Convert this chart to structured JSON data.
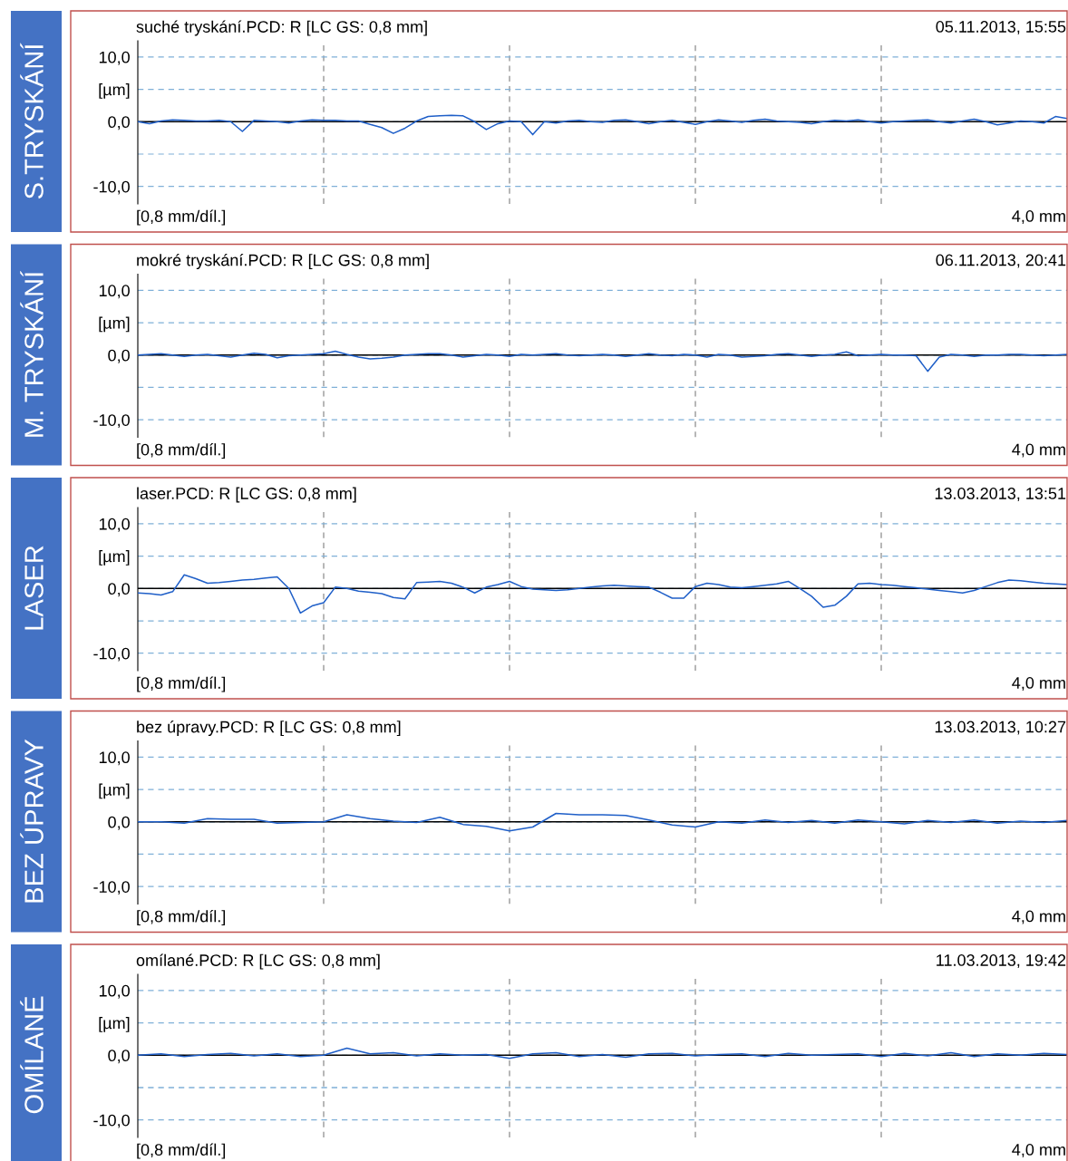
{
  "chart_data": [
    {
      "type": "line",
      "title": "suché tryskání.PCD: R [LC GS: 0,8 mm]",
      "subtitle": "05.11.2013, 15:55",
      "ylabel": "S.TRYSKÁNÍ",
      "annotations": [
        "[0,8 mm/díl.]",
        "4,0 mm"
      ],
      "categories": [
        null,
        null,
        null,
        null,
        null,
        null,
        null,
        null,
        null,
        null,
        null,
        null,
        null,
        null,
        null,
        null,
        null,
        null,
        null,
        null,
        null,
        null,
        null,
        null,
        null,
        null,
        null,
        null,
        null,
        null,
        null,
        null,
        null,
        null,
        null,
        null,
        null,
        null,
        null,
        null,
        null,
        null,
        null,
        null,
        null,
        null,
        null,
        null,
        null,
        null,
        null,
        null,
        null,
        null,
        null,
        null,
        null,
        null,
        null,
        null,
        null,
        null,
        null,
        null,
        null,
        null,
        null,
        null,
        null,
        null,
        null,
        null,
        null,
        null,
        null,
        null,
        null,
        null,
        null,
        null,
        null
      ],
      "ylim": [
        -12.7,
        12.5
      ],
      "yticks": [
        {
          "value": 10,
          "label": "10,0"
        },
        {
          "value": 5,
          "label": "[µm]"
        },
        {
          "value": 0,
          "label": "0,0"
        },
        {
          "value": -5,
          "label": null
        },
        {
          "value": -10,
          "label": "-10,0"
        }
      ],
      "grid": true,
      "tick_labels": "y",
      "ref_lines": [
        {
          "axis": "y",
          "value": 0,
          "color": "#000000"
        }
      ],
      "series": [
        {
          "color": "#1f5fc8",
          "values": [
            0.0,
            -0.3,
            0.1,
            0.3,
            0.2,
            0.1,
            0.1,
            0.2,
            0.0,
            -1.5,
            0.2,
            0.1,
            0.0,
            -0.2,
            0.1,
            0.3,
            0.2,
            0.2,
            0.1,
            0.1,
            -0.4,
            -0.9,
            -1.8,
            -1.0,
            0.1,
            0.8,
            0.9,
            1.0,
            0.9,
            0.0,
            -1.2,
            -0.3,
            0.1,
            0.0,
            -2.0,
            0.0,
            -0.2,
            0.1,
            0.2,
            0.0,
            -0.1,
            0.2,
            0.3,
            0.0,
            -0.3,
            0.0,
            0.2,
            -0.1,
            -0.4,
            0.0,
            0.3,
            0.1,
            -0.1,
            0.2,
            0.4,
            0.1,
            0.0,
            -0.1,
            -0.3,
            0.0,
            0.2,
            0.1,
            0.3,
            0.0,
            -0.2,
            0.0,
            0.1,
            0.2,
            0.3,
            0.0,
            -0.2,
            0.1,
            0.4,
            0.0,
            -0.5,
            -0.2,
            0.1,
            0.0,
            -0.2,
            0.8,
            0.5
          ]
        }
      ]
    },
    {
      "type": "line",
      "title": "mokré tryskání.PCD: R [LC GS: 0,8 mm]",
      "subtitle": "06.11.2013, 20:41",
      "ylabel": "M. TRYSKÁNÍ",
      "annotations": [
        "[0,8 mm/díl.]",
        "4,0 mm"
      ],
      "categories": [
        null,
        null,
        null,
        null,
        null,
        null,
        null,
        null,
        null,
        null,
        null,
        null,
        null,
        null,
        null,
        null,
        null,
        null,
        null,
        null,
        null,
        null,
        null,
        null,
        null,
        null,
        null,
        null,
        null,
        null,
        null,
        null,
        null,
        null,
        null,
        null,
        null,
        null,
        null,
        null,
        null,
        null,
        null,
        null,
        null,
        null,
        null,
        null,
        null,
        null,
        null,
        null,
        null,
        null,
        null,
        null,
        null,
        null,
        null,
        null,
        null,
        null,
        null,
        null,
        null,
        null,
        null,
        null,
        null,
        null,
        null,
        null,
        null,
        null,
        null,
        null,
        null,
        null,
        null,
        null,
        null
      ],
      "ylim": [
        -12.7,
        12.5
      ],
      "yticks": [
        {
          "value": 10,
          "label": "10,0"
        },
        {
          "value": 5,
          "label": "[µm]"
        },
        {
          "value": 0,
          "label": "0,0"
        },
        {
          "value": -5,
          "label": null
        },
        {
          "value": -10,
          "label": "-10,0"
        }
      ],
      "grid": true,
      "tick_labels": "y",
      "ref_lines": [
        {
          "axis": "y",
          "value": 0,
          "color": "#000000"
        }
      ],
      "series": [
        {
          "color": "#1f5fc8",
          "values": [
            0.0,
            0.1,
            0.2,
            0.0,
            -0.2,
            0.0,
            0.1,
            -0.1,
            -0.3,
            0.0,
            0.3,
            0.1,
            -0.4,
            -0.1,
            0.0,
            0.1,
            0.2,
            0.6,
            0.1,
            -0.3,
            -0.6,
            -0.5,
            -0.3,
            0.0,
            0.1,
            0.2,
            0.2,
            0.0,
            -0.3,
            -0.1,
            0.1,
            0.0,
            -0.2,
            0.1,
            0.0,
            0.1,
            0.2,
            0.0,
            -0.1,
            0.0,
            0.1,
            0.0,
            -0.2,
            0.0,
            0.2,
            0.0,
            -0.1,
            0.1,
            0.0,
            -0.3,
            0.1,
            0.0,
            -0.3,
            -0.2,
            -0.1,
            0.1,
            0.2,
            0.0,
            -0.2,
            0.0,
            0.1,
            0.5,
            -0.1,
            0.0,
            0.1,
            0.0,
            0.0,
            -0.1,
            -2.5,
            -0.3,
            0.1,
            0.0,
            -0.2,
            0.0,
            0.0,
            0.1,
            0.1,
            0.0,
            -0.1,
            0.0,
            0.1
          ]
        }
      ]
    },
    {
      "type": "line",
      "title": "laser.PCD: R [LC GS: 0,8 mm]",
      "subtitle": "13.03.2013, 13:51",
      "ylabel": "LASER",
      "annotations": [
        "[0,8 mm/díl.]",
        "4,0 mm"
      ],
      "categories": [
        null,
        null,
        null,
        null,
        null,
        null,
        null,
        null,
        null,
        null,
        null,
        null,
        null,
        null,
        null,
        null,
        null,
        null,
        null,
        null,
        null,
        null,
        null,
        null,
        null,
        null,
        null,
        null,
        null,
        null,
        null,
        null,
        null,
        null,
        null,
        null,
        null,
        null,
        null,
        null,
        null,
        null,
        null,
        null,
        null,
        null,
        null,
        null,
        null,
        null,
        null,
        null,
        null,
        null,
        null,
        null,
        null,
        null,
        null,
        null,
        null,
        null,
        null,
        null,
        null,
        null,
        null,
        null,
        null,
        null,
        null,
        null,
        null,
        null,
        null,
        null,
        null,
        null,
        null,
        null,
        null
      ],
      "ylim": [
        -12.7,
        12.5
      ],
      "yticks": [
        {
          "value": 10,
          "label": "10,0"
        },
        {
          "value": 5,
          "label": "[µm]"
        },
        {
          "value": 0,
          "label": "0,0"
        },
        {
          "value": -5,
          "label": null
        },
        {
          "value": -10,
          "label": "-10,0"
        }
      ],
      "grid": true,
      "tick_labels": "y",
      "ref_lines": [
        {
          "axis": "y",
          "value": 0,
          "color": "#000000"
        }
      ],
      "series": [
        {
          "color": "#1f5fc8",
          "values": [
            -0.7,
            -0.8,
            -1.0,
            -0.5,
            2.1,
            1.5,
            0.8,
            0.9,
            1.1,
            1.3,
            1.4,
            1.6,
            1.8,
            0.0,
            -3.8,
            -2.7,
            -2.2,
            0.2,
            0.0,
            -0.4,
            -0.6,
            -0.8,
            -1.4,
            -1.6,
            0.9,
            1.0,
            1.1,
            0.8,
            0.2,
            -0.7,
            0.2,
            0.6,
            1.1,
            0.3,
            -0.1,
            -0.2,
            -0.3,
            -0.2,
            0.0,
            0.2,
            0.4,
            0.5,
            0.4,
            0.3,
            0.2,
            -0.6,
            -1.5,
            -1.5,
            0.3,
            0.8,
            0.6,
            0.2,
            0.1,
            0.3,
            0.5,
            0.7,
            1.1,
            0.0,
            -1.2,
            -2.9,
            -2.6,
            -1.2,
            0.7,
            0.8,
            0.6,
            0.5,
            0.3,
            0.1,
            -0.1,
            -0.3,
            -0.5,
            -0.7,
            -0.3,
            0.3,
            0.9,
            1.3,
            1.2,
            1.0,
            0.8,
            0.7,
            0.6
          ]
        }
      ]
    },
    {
      "type": "line",
      "title": "bez úpravy.PCD: R [LC GS: 0,8 mm]",
      "subtitle": "13.03.2013, 10:27",
      "ylabel": "BEZ ÚPRAVY",
      "annotations": [
        "[0,8 mm/díl.]",
        "4,0 mm"
      ],
      "categories": [
        null,
        null,
        null,
        null,
        null,
        null,
        null,
        null,
        null,
        null,
        null,
        null,
        null,
        null,
        null,
        null,
        null,
        null,
        null,
        null,
        null,
        null,
        null,
        null,
        null,
        null,
        null,
        null,
        null,
        null,
        null,
        null,
        null,
        null,
        null,
        null,
        null,
        null,
        null,
        null,
        null
      ],
      "ylim": [
        -12.7,
        12.5
      ],
      "yticks": [
        {
          "value": 10,
          "label": "10,0"
        },
        {
          "value": 5,
          "label": "[µm]"
        },
        {
          "value": 0,
          "label": "0,0"
        },
        {
          "value": -5,
          "label": null
        },
        {
          "value": -10,
          "label": "-10,0"
        }
      ],
      "grid": true,
      "tick_labels": "y",
      "ref_lines": [
        {
          "axis": "y",
          "value": 0,
          "color": "#000000"
        }
      ],
      "series": [
        {
          "color": "#1f5fc8",
          "values": [
            0.0,
            0.0,
            -0.2,
            0.5,
            0.4,
            0.4,
            -0.2,
            -0.1,
            0.0,
            1.1,
            0.5,
            0.1,
            -0.1,
            0.7,
            -0.4,
            -0.7,
            -1.4,
            -0.8,
            1.3,
            1.1,
            1.1,
            1.0,
            0.3,
            -0.5,
            -0.8,
            0.0,
            -0.2,
            0.3,
            -0.1,
            0.2,
            -0.2,
            0.3,
            0.0,
            -0.3,
            0.2,
            -0.1,
            0.3,
            -0.2,
            0.1,
            -0.1,
            0.2
          ]
        }
      ]
    },
    {
      "type": "line",
      "title": "omílané.PCD: R [LC GS: 0,8 mm]",
      "subtitle": "11.03.2013, 19:42",
      "ylabel": "OMÍLANÉ",
      "annotations": [
        "[0,8 mm/díl.]",
        "4,0 mm"
      ],
      "categories": [
        null,
        null,
        null,
        null,
        null,
        null,
        null,
        null,
        null,
        null,
        null,
        null,
        null,
        null,
        null,
        null,
        null,
        null,
        null,
        null,
        null,
        null,
        null,
        null,
        null,
        null,
        null,
        null,
        null,
        null,
        null,
        null,
        null,
        null,
        null,
        null,
        null,
        null,
        null,
        null,
        null
      ],
      "ylim": [
        -12.7,
        12.5
      ],
      "yticks": [
        {
          "value": 10,
          "label": "10,0"
        },
        {
          "value": 5,
          "label": "[µm]"
        },
        {
          "value": 0,
          "label": "0,0"
        },
        {
          "value": -5,
          "label": null
        },
        {
          "value": -10,
          "label": "-10,0"
        }
      ],
      "grid": true,
      "tick_labels": "y",
      "ref_lines": [
        {
          "axis": "y",
          "value": 0,
          "color": "#000000"
        }
      ],
      "series": [
        {
          "color": "#1f5fc8",
          "values": [
            0.0,
            0.2,
            -0.2,
            0.1,
            0.3,
            -0.1,
            0.2,
            -0.2,
            0.0,
            1.1,
            0.2,
            0.4,
            -0.1,
            0.2,
            0.0,
            0.1,
            -0.5,
            0.2,
            0.4,
            -0.2,
            0.1,
            -0.3,
            0.2,
            0.3,
            -0.1,
            0.1,
            0.2,
            -0.2,
            0.3,
            0.0,
            0.1,
            0.2,
            -0.2,
            0.3,
            -0.1,
            0.4,
            -0.2,
            0.2,
            0.0,
            0.3,
            0.1
          ]
        }
      ]
    }
  ]
}
